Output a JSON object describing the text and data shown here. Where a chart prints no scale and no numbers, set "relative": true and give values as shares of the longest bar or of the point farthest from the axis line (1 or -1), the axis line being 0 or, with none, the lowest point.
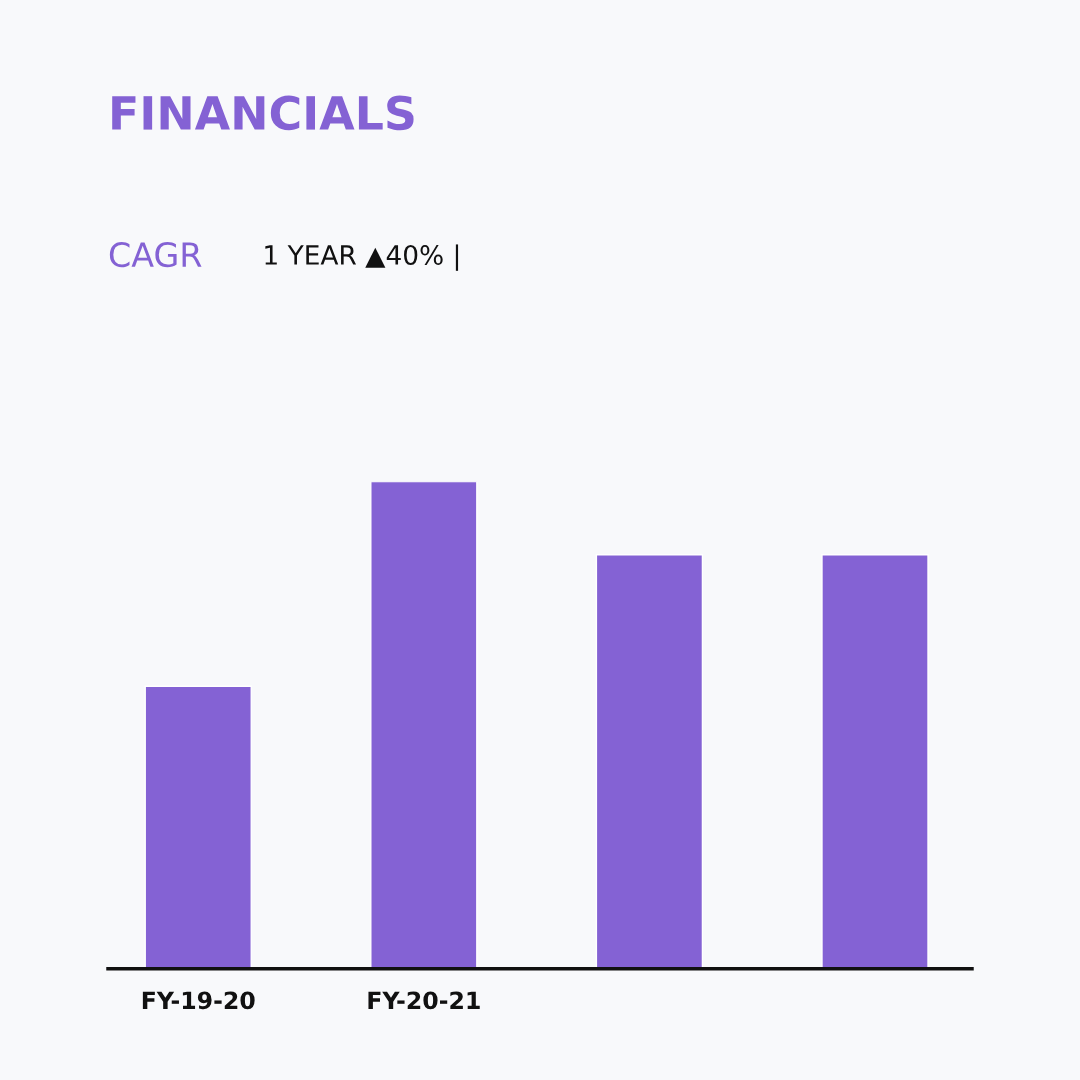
{
  "chart_data": {
    "type": "bar",
    "title": "FINANCIALS",
    "subtitle": "CAGR",
    "annotations": [
      "1 YEAR ▲40% |"
    ],
    "categories": [
      "FY-19-20",
      "FY-20-21",
      null,
      null
    ],
    "values": [
      0.58,
      1,
      0.85,
      0.85
    ],
    "color": "#8462d4",
    "relative": true
  }
}
